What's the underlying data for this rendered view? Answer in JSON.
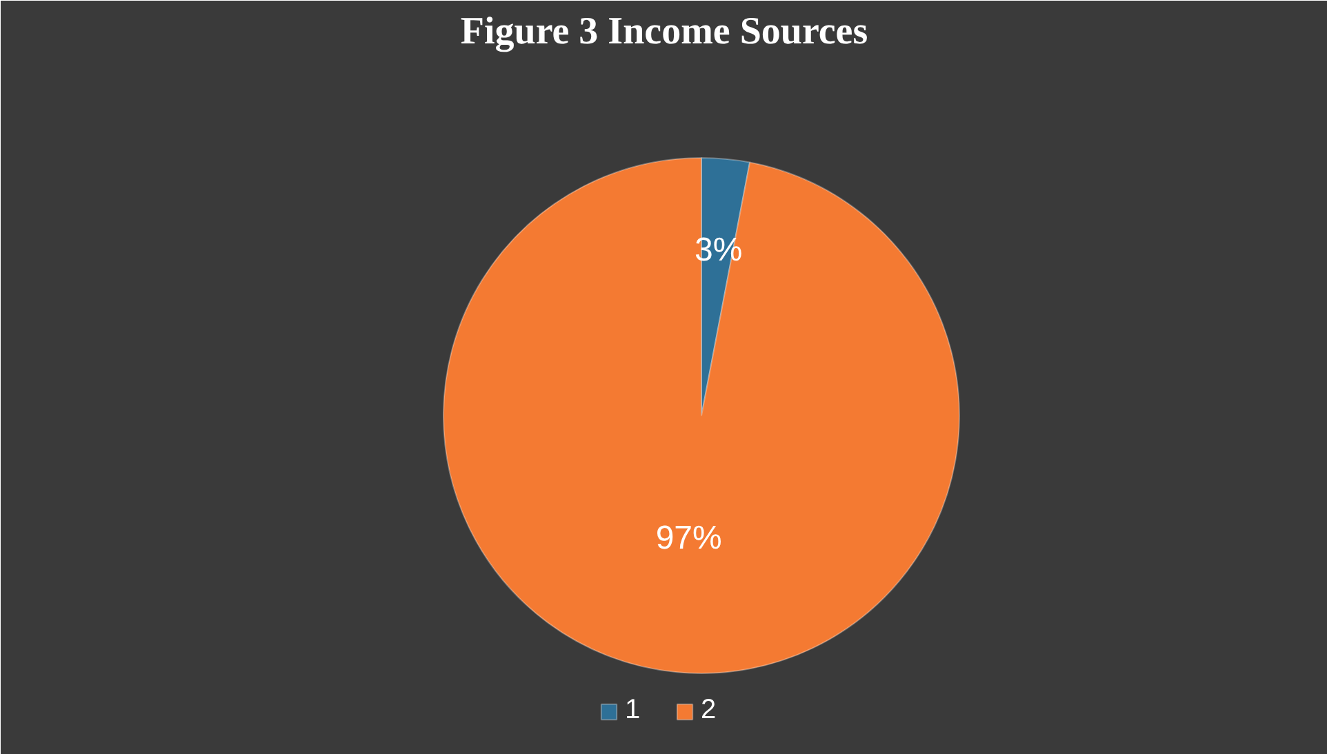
{
  "chart_data": {
    "type": "pie",
    "title": "Figure 3 Income Sources",
    "categories": [
      "1",
      "2"
    ],
    "values": [
      3,
      97
    ],
    "colors": [
      "#2e7097",
      "#f47a32"
    ],
    "value_labels": [
      "3%",
      "97%"
    ],
    "legend": "bottom"
  }
}
